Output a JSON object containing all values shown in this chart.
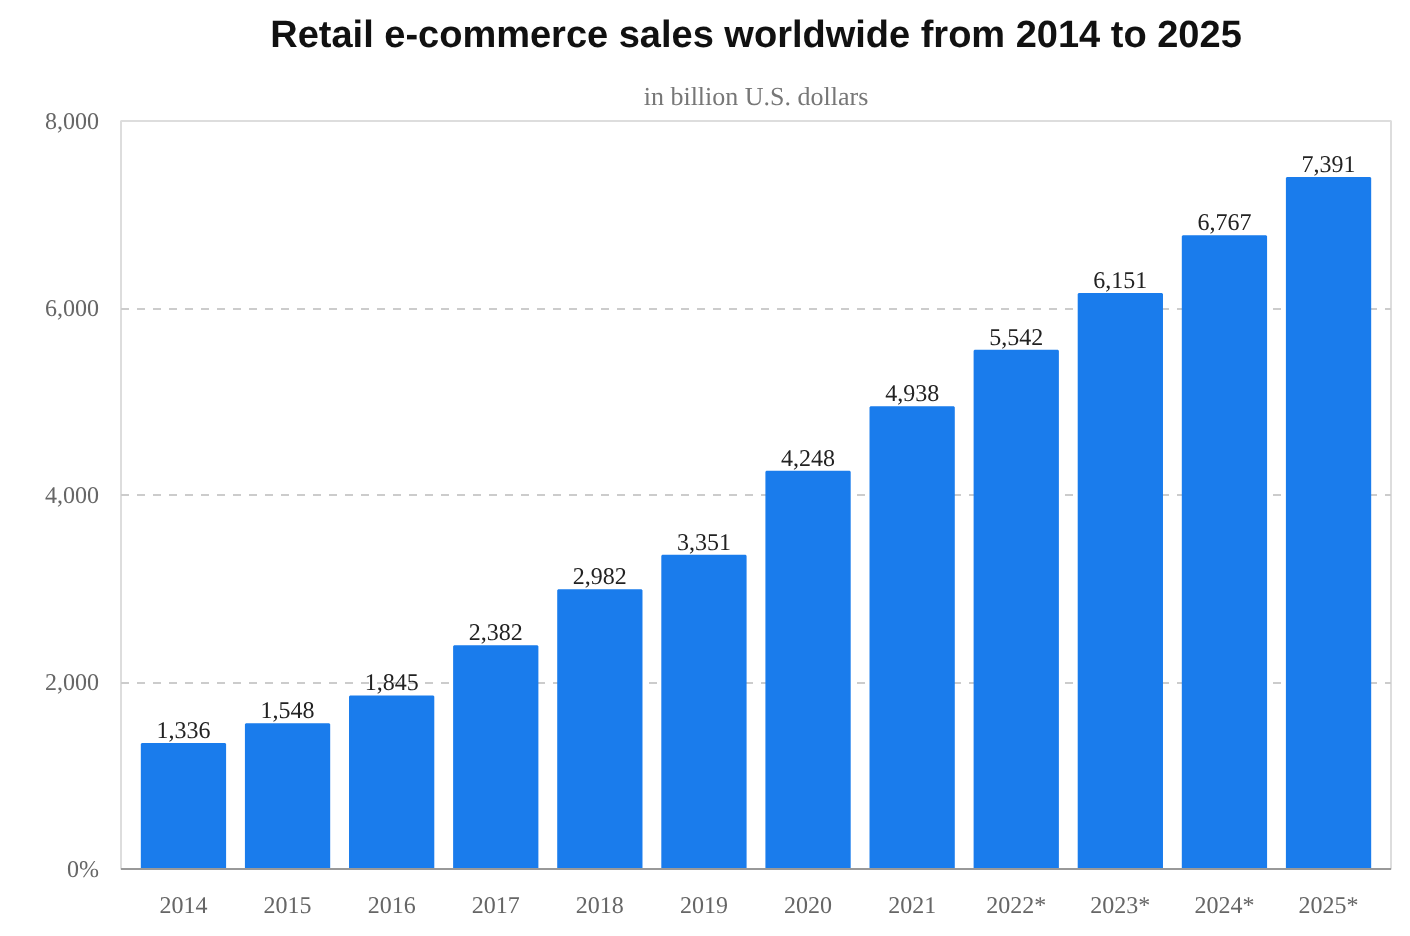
{
  "chart_data": {
    "type": "bar",
    "title": "Retail e-commerce sales worldwide from 2014 to 2025",
    "subtitle": "in billion U.S. dollars",
    "categories": [
      "2014",
      "2015",
      "2016",
      "2017",
      "2018",
      "2019",
      "2020",
      "2021",
      "2022*",
      "2023*",
      "2024*",
      "2025*"
    ],
    "values": [
      1336,
      1548,
      1845,
      2382,
      2982,
      3351,
      4248,
      4938,
      5542,
      6151,
      6767,
      7391
    ],
    "color": "#1a7cec",
    "ylim": [
      0,
      8000
    ],
    "yticks": [
      {
        "value": 0,
        "label": "0%"
      },
      {
        "value": 2000,
        "label": "2,000"
      },
      {
        "value": 4000,
        "label": "4,000"
      },
      {
        "value": 6000,
        "label": "6,000"
      },
      {
        "value": 8000,
        "label": "8,000"
      }
    ],
    "grid": "y",
    "value_labels": [
      "1,336",
      "1,548",
      "1,845",
      "2,382",
      "2,982",
      "3,351",
      "4,248",
      "4,938",
      "5,542",
      "6,151",
      "6,767",
      "7,391"
    ]
  }
}
